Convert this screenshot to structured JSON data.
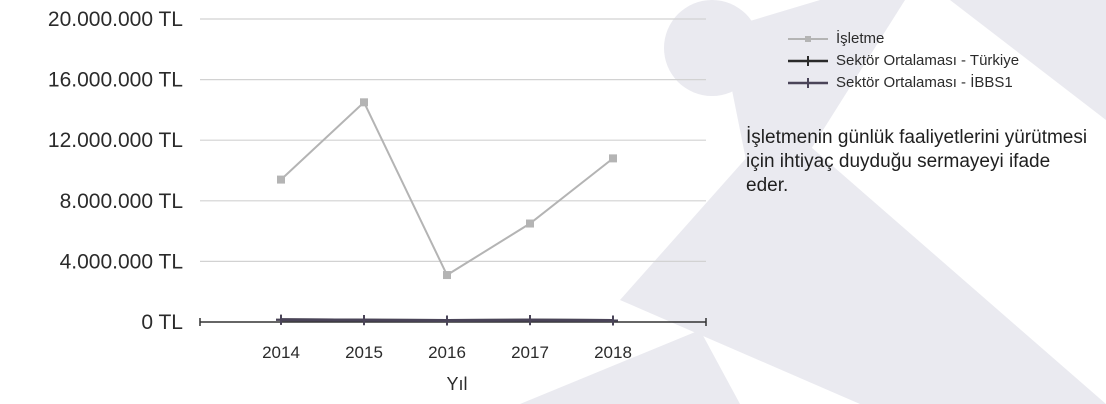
{
  "chart_data": {
    "type": "line",
    "categories": [
      "2014",
      "2015",
      "2016",
      "2017",
      "2018"
    ],
    "series": [
      {
        "name": "İşletme",
        "color": "#b4b4b4",
        "values": [
          9400000,
          14500000,
          3100000,
          6500000,
          10800000
        ]
      },
      {
        "name": "Sektör Ortalaması - Türkiye",
        "color": "#2a2a2a",
        "values": [
          150000,
          120000,
          100000,
          120000,
          100000
        ]
      },
      {
        "name": "Sektör Ortalaması - İBBS1",
        "color": "#4a4458",
        "values": [
          150000,
          120000,
          100000,
          120000,
          100000
        ]
      }
    ],
    "xlabel": "Yıl",
    "ylabel": "",
    "ylim": [
      0,
      20000000
    ],
    "yticks": [
      {
        "value": 20000000,
        "label": "20.000.000 TL"
      },
      {
        "value": 16000000,
        "label": "16.000.000 TL"
      },
      {
        "value": 12000000,
        "label": "12.000.000 TL"
      },
      {
        "value": 8000000,
        "label": "8.000.000 TL"
      },
      {
        "value": 4000000,
        "label": "4.000.000 TL"
      },
      {
        "value": 0,
        "label": "0 TL"
      }
    ],
    "grid": true,
    "legend_position": "top-right"
  },
  "note": "İşletmenin günlük faaliyetlerini yürütmesi için ihtiyaç duyduğu sermayeyi ifade eder.",
  "colors": {
    "grid": "#d2d2d2",
    "axis": "#333333",
    "watermark": "#e9e9ef"
  }
}
